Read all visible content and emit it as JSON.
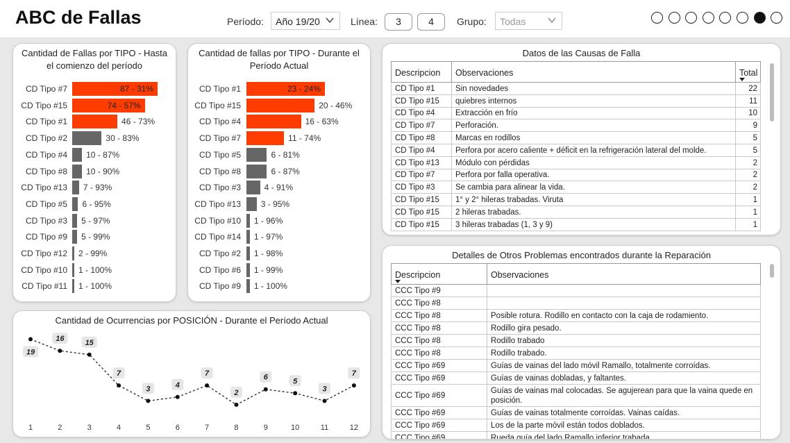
{
  "header": {
    "title": "ABC de Fallas",
    "periodo_label": "Período:",
    "periodo_value": "Año 19/20",
    "linea_label": "Línea:",
    "linea_options": [
      "3",
      "4"
    ],
    "grupo_label": "Grupo:",
    "grupo_value": "Todas",
    "page_dots": 8,
    "active_dot": 6
  },
  "bar1": {
    "title": "Cantidad de Fallas por TIPO - Hasta el comienzo del período",
    "chart_data": {
      "type": "bar",
      "orientation": "horizontal",
      "categories": [
        "CD Tipo #7",
        "CD Tipo #15",
        "CD Tipo #1",
        "CD Tipo #2",
        "CD Tipo #4",
        "CD Tipo #8",
        "CD Tipo #13",
        "CD Tipo #5",
        "CD Tipo #3",
        "CD Tipo #9",
        "CD Tipo #12",
        "CD Tipo #10",
        "CD Tipo #11"
      ],
      "values": [
        87,
        74,
        46,
        30,
        10,
        10,
        7,
        6,
        5,
        5,
        2,
        1,
        1
      ],
      "labels": [
        "87 - 31%",
        "74 - 57%",
        "46 - 73%",
        "30 - 83%",
        "10 - 87%",
        "10 - 90%",
        "7 - 93%",
        "6 - 95%",
        "5 - 97%",
        "5 - 99%",
        "2 - 99%",
        "1 - 100%",
        "1 - 100%"
      ],
      "colors": [
        "#ff3c00",
        "#ff3c00",
        "#ff3c00",
        "#666666",
        "#666666",
        "#666666",
        "#666666",
        "#666666",
        "#666666",
        "#666666",
        "#666666",
        "#666666",
        "#666666"
      ],
      "inside_label": [
        true,
        true,
        false,
        false,
        false,
        false,
        false,
        false,
        false,
        false,
        false,
        false,
        false
      ]
    }
  },
  "bar2": {
    "title": "Cantidad de fallas por TIPO - Durante el Período Actual",
    "chart_data": {
      "type": "bar",
      "orientation": "horizontal",
      "categories": [
        "CD Tipo #1",
        "CD Tipo #15",
        "CD Tipo #4",
        "CD Tipo #7",
        "CD Tipo #5",
        "CD Tipo #8",
        "CD Tipo #3",
        "CD Tipo #13",
        "CD Tipo #10",
        "CD Tipo #14",
        "CD Tipo #2",
        "CD Tipo #6",
        "CD Tipo #9"
      ],
      "values": [
        23,
        20,
        16,
        11,
        6,
        6,
        4,
        3,
        1,
        1,
        1,
        1,
        1
      ],
      "labels": [
        "23 - 24%",
        "20 - 46%",
        "16 - 63%",
        "11 - 74%",
        "6 - 81%",
        "6 - 87%",
        "4 - 91%",
        "3 - 95%",
        "1 - 96%",
        "1 - 97%",
        "1 - 98%",
        "1 - 99%",
        "1 - 100%"
      ],
      "colors": [
        "#ff3c00",
        "#ff3c00",
        "#ff3c00",
        "#ff3c00",
        "#666666",
        "#666666",
        "#666666",
        "#666666",
        "#666666",
        "#666666",
        "#666666",
        "#666666",
        "#666666"
      ],
      "inside_label": [
        true,
        false,
        false,
        false,
        false,
        false,
        false,
        false,
        false,
        false,
        false,
        false,
        false
      ]
    }
  },
  "line1": {
    "title": "Cantidad de Ocurrencias por POSICIÓN - Durante el Período Actual",
    "chart_data": {
      "type": "line",
      "x": [
        "1",
        "2",
        "3",
        "4",
        "5",
        "6",
        "7",
        "8",
        "9",
        "10",
        "11",
        "12"
      ],
      "values": [
        19,
        16,
        15,
        7,
        3,
        4,
        7,
        2,
        6,
        5,
        3,
        7
      ],
      "ylim": [
        0,
        20
      ]
    }
  },
  "table1": {
    "title": "Datos de las Causas de Falla",
    "columns": [
      "Descripcion",
      "Observaciones",
      "Total"
    ],
    "rows": [
      [
        "CD Tipo #1",
        "Sin novedades",
        "22"
      ],
      [
        "CD Tipo #15",
        "quiebres internos",
        "11"
      ],
      [
        "CD Tipo #4",
        "Extracción en frío",
        "10"
      ],
      [
        "CD Tipo #7",
        "Perforación.",
        "9"
      ],
      [
        "CD Tipo #8",
        "Marcas en rodillos",
        "5"
      ],
      [
        "CD Tipo #4",
        "Perfora por acero caliente + déficit en la refrigeración lateral del molde.",
        "5"
      ],
      [
        "CD Tipo #13",
        "Módulo con pérdidas",
        "2"
      ],
      [
        "CD Tipo #7",
        "Perfora por falla operativa.",
        "2"
      ],
      [
        "CD Tipo #3",
        "Se cambia para alinear la vida.",
        "2"
      ],
      [
        "CD Tipo #15",
        "1° y 2° hileras trabadas. Viruta",
        "1"
      ],
      [
        "CD Tipo #15",
        "2 hileras trabadas.",
        "1"
      ],
      [
        "CD Tipo #15",
        "3 hileras trabadas (1, 3 y 9)",
        "1"
      ]
    ]
  },
  "table2": {
    "title": "Detalles de Otros Problemas encontrados durante la Reparación",
    "columns": [
      "Descripcion",
      "Observaciones"
    ],
    "rows": [
      [
        "CCC Tipo #9",
        ""
      ],
      [
        "CCC Tipo #8",
        ""
      ],
      [
        "CCC Tipo #8",
        "Posible rotura. Rodillo en contacto con la caja de rodamiento."
      ],
      [
        "CCC Tipo #8",
        "Rodillo gira pesado."
      ],
      [
        "CCC Tipo #8",
        "Rodillo trabado"
      ],
      [
        "CCC Tipo #8",
        "Rodillo trabado."
      ],
      [
        "CCC Tipo #69",
        "Guías de vainas del lado móvil Ramallo, totalmente corroídas."
      ],
      [
        "CCC Tipo #69",
        "Guías de vainas dobladas, y faltantes."
      ],
      [
        "CCC Tipo #69",
        "Guías de vainas mal colocadas. Se agujerean para que la vaina quede en posición."
      ],
      [
        "CCC Tipo #69",
        "Guías de vainas totalmente corroídas. Vainas caídas."
      ],
      [
        "CCC Tipo #69",
        "Los de la parte móvil están todos doblados."
      ],
      [
        "CCC Tipo #69",
        "Rueda guía del lado Ramallo inferior trabada."
      ]
    ]
  }
}
